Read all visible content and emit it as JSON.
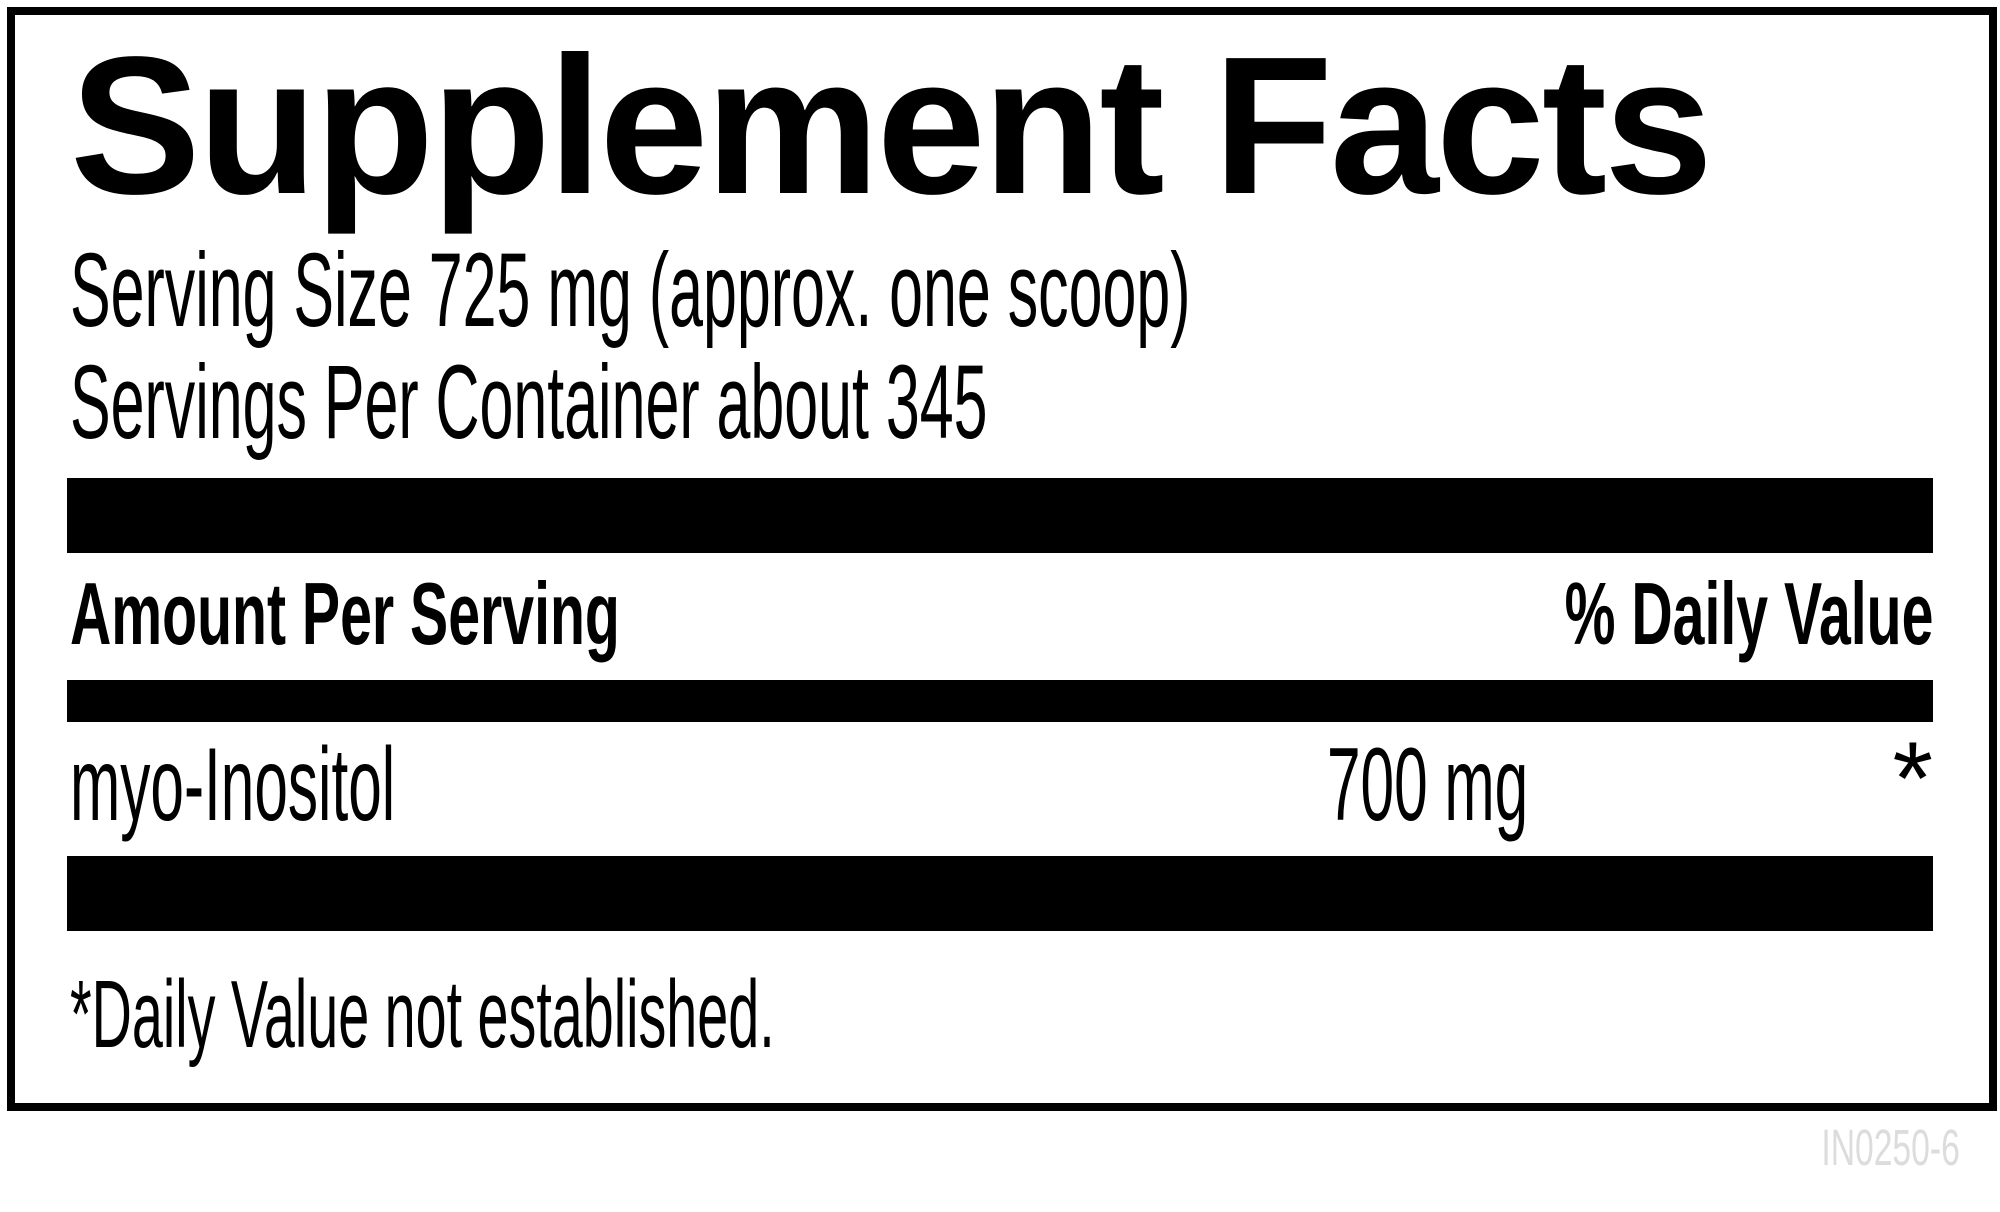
{
  "panel": {
    "title": "Supplement Facts",
    "serving_size": "Serving Size 725 mg (approx. one scoop)",
    "servings_per_container": "Servings Per Container about 345",
    "header": {
      "amount": "Amount Per Serving",
      "daily_value": "% Daily Value"
    },
    "rows": [
      {
        "name": "myo-Inositol",
        "amount": "700 mg",
        "daily_value": "*"
      }
    ],
    "footnote": "*Daily Value not established.",
    "colors": {
      "ink": "#000000",
      "panel_background": "#ffffff",
      "border": "#000000",
      "product_code_gray": "#dcdcdc"
    }
  },
  "product_code": "IN0250-6"
}
